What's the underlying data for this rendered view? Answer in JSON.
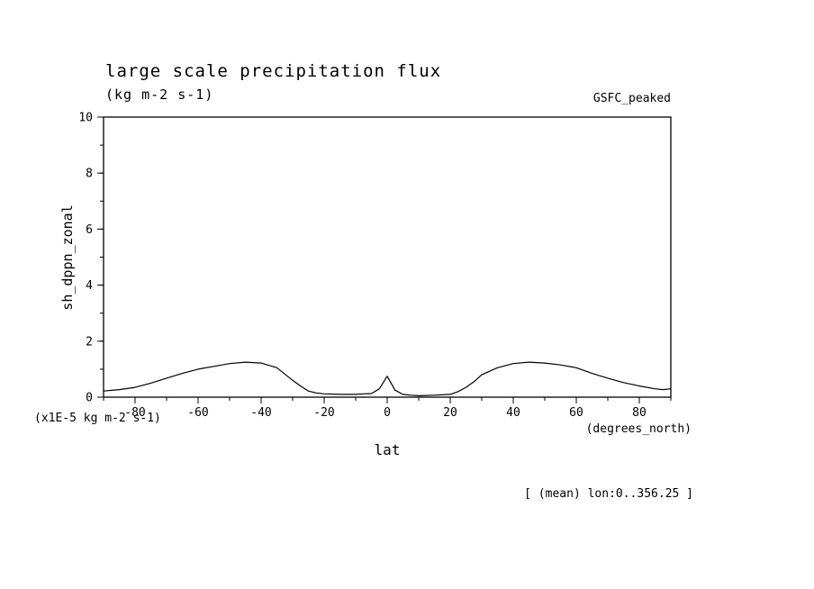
{
  "header": {
    "title": "large scale precipitation flux",
    "subtitle": "(kg m-2 s-1)",
    "dataset": "GSFC_peaked"
  },
  "axes": {
    "ylabel": "sh_dppn_zonal",
    "xlabel": "lat",
    "y_unit_note": "(x1E-5 kg m-2 s-1)",
    "x_unit_note": "(degrees_north)"
  },
  "footer": {
    "annotation": "[ (mean) lon:0..356.25 ]"
  },
  "chart_data": {
    "type": "line",
    "title": "large scale precipitation flux",
    "subtitle": "(kg m-2 s-1)",
    "dataset_label": "GSFC_peaked",
    "xlabel": "lat",
    "ylabel": "sh_dppn_zonal",
    "x_units": "(degrees_north)",
    "y_units": "(x1E-5 kg m-2 s-1)",
    "annotation": "[ (mean) lon:0..356.25 ]",
    "xlim": [
      -90,
      90
    ],
    "ylim": [
      0,
      10
    ],
    "xticks": [
      -80,
      -60,
      -40,
      -20,
      0,
      20,
      40,
      60,
      80
    ],
    "yticks": [
      0,
      2,
      4,
      6,
      8,
      10
    ],
    "x_minor_step": 10,
    "y_minor_step": 1,
    "grid": false,
    "legend": "none",
    "line_color": "#000000",
    "series": [
      {
        "name": "sh_dppn_zonal",
        "x": [
          -90,
          -85,
          -80,
          -75,
          -70,
          -65,
          -60,
          -55,
          -50,
          -45,
          -40,
          -35,
          -30,
          -27.5,
          -25,
          -22.5,
          -20,
          -15,
          -10,
          -7.5,
          -5,
          -2.5,
          0,
          2.5,
          5,
          7.5,
          10,
          15,
          20,
          22.5,
          25,
          27.5,
          30,
          35,
          40,
          45,
          50,
          55,
          60,
          65,
          70,
          75,
          80,
          85,
          87.5,
          90
        ],
        "y": [
          0.22,
          0.27,
          0.35,
          0.5,
          0.68,
          0.85,
          1.0,
          1.1,
          1.2,
          1.25,
          1.22,
          1.05,
          0.6,
          0.4,
          0.22,
          0.15,
          0.12,
          0.1,
          0.1,
          0.12,
          0.13,
          0.3,
          0.75,
          0.25,
          0.1,
          0.07,
          0.05,
          0.07,
          0.1,
          0.2,
          0.35,
          0.55,
          0.8,
          1.05,
          1.2,
          1.25,
          1.22,
          1.15,
          1.05,
          0.85,
          0.68,
          0.52,
          0.4,
          0.3,
          0.27,
          0.3
        ]
      }
    ]
  }
}
